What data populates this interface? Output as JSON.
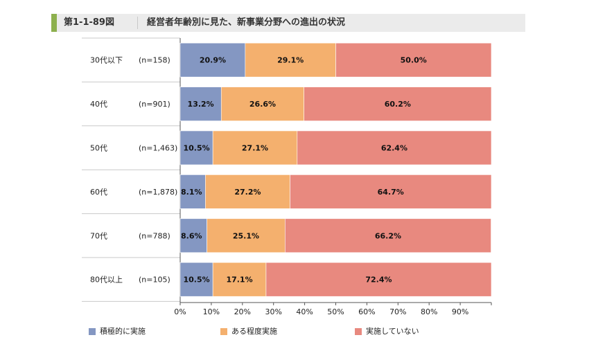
{
  "header": {
    "figure_number": "第1-1-89図",
    "title": "経営者年齢別に見た、新事業分野への進出の状況"
  },
  "chart_data": {
    "type": "bar",
    "orientation": "horizontal",
    "stacked": true,
    "title": "経営者年齢別に見た、新事業分野への進出の状況",
    "categories": [
      "30代以下",
      "40代",
      "50代",
      "60代",
      "70代",
      "80代以上"
    ],
    "sample_sizes": [
      "(n=158)",
      "(n=901)",
      "(n=1,463)",
      "(n=1,878)",
      "(n=788)",
      "(n=105)"
    ],
    "series": [
      {
        "name": "積極的に実施",
        "color": "#8497c2",
        "values": [
          20.9,
          13.2,
          10.5,
          8.1,
          8.6,
          10.5
        ]
      },
      {
        "name": "ある程度実施",
        "color": "#f4b06e",
        "values": [
          29.1,
          26.6,
          27.1,
          27.2,
          25.1,
          17.1
        ]
      },
      {
        "name": "実施していない",
        "color": "#e8897f",
        "values": [
          50.0,
          60.2,
          62.4,
          64.7,
          66.2,
          72.4
        ]
      }
    ],
    "xlim": [
      0,
      100
    ],
    "xticks": [
      "0%",
      "10%",
      "20%",
      "30%",
      "40%",
      "50%",
      "60%",
      "70%",
      "80%",
      "90%"
    ],
    "value_suffix": "%",
    "grid": false,
    "legend_position": "bottom"
  }
}
